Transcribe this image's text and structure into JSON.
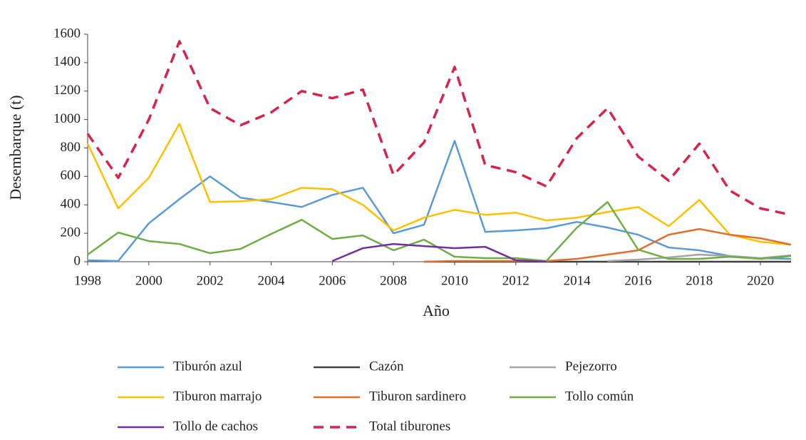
{
  "chart_data": {
    "type": "line",
    "x_label": "Año",
    "y_label": "Desembarque (t)",
    "x": [
      1998,
      1999,
      2000,
      2001,
      2002,
      2003,
      2004,
      2005,
      2006,
      2007,
      2008,
      2009,
      2010,
      2011,
      2012,
      2013,
      2014,
      2015,
      2016,
      2017,
      2018,
      2019,
      2020,
      2021
    ],
    "xlim": [
      1998,
      2021
    ],
    "xticks": [
      1998,
      2000,
      2002,
      2004,
      2006,
      2008,
      2010,
      2012,
      2014,
      2016,
      2018,
      2020
    ],
    "ylim": [
      0,
      1600
    ],
    "yticks": [
      0,
      200,
      400,
      600,
      800,
      1000,
      1200,
      1400,
      1600
    ],
    "grid": false,
    "legend": "bottom",
    "series": [
      {
        "name": "Tiburón azul",
        "color": "#5b9bd5",
        "line_style": "solid",
        "values": [
          10,
          5,
          270,
          440,
          600,
          450,
          420,
          385,
          470,
          520,
          200,
          260,
          850,
          210,
          220,
          235,
          280,
          240,
          190,
          100,
          80,
          40,
          25,
          20
        ]
      },
      {
        "name": "Cazón",
        "color": "#404040",
        "line_style": "solid",
        "values": [
          null,
          null,
          null,
          null,
          null,
          null,
          null,
          null,
          null,
          null,
          null,
          0,
          0,
          0,
          0,
          0,
          0,
          0,
          0,
          0,
          0,
          0,
          0,
          0
        ]
      },
      {
        "name": "Pejezorro",
        "color": "#a5a5a5",
        "line_style": "solid",
        "values": [
          null,
          null,
          null,
          null,
          null,
          null,
          null,
          null,
          null,
          null,
          null,
          null,
          null,
          null,
          null,
          null,
          null,
          5,
          15,
          30,
          50,
          40,
          25,
          45
        ]
      },
      {
        "name": "Tiburon marrajo",
        "color": "#ffc000",
        "line_style": "solid",
        "values": [
          830,
          375,
          590,
          970,
          420,
          425,
          440,
          520,
          510,
          400,
          220,
          310,
          365,
          330,
          345,
          290,
          310,
          350,
          385,
          250,
          435,
          190,
          140,
          120
        ]
      },
      {
        "name": "Tiburon sardinero",
        "color": "#e07030",
        "line_style": "solid",
        "values": [
          null,
          null,
          null,
          null,
          null,
          null,
          null,
          null,
          null,
          null,
          null,
          0,
          5,
          5,
          5,
          5,
          20,
          50,
          80,
          190,
          230,
          190,
          165,
          120
        ]
      },
      {
        "name": "Tollo común",
        "color": "#70ad47",
        "line_style": "solid",
        "values": [
          50,
          205,
          145,
          125,
          60,
          90,
          195,
          295,
          160,
          185,
          80,
          155,
          35,
          25,
          25,
          5,
          240,
          420,
          85,
          20,
          20,
          35,
          20,
          40
        ]
      },
      {
        "name": "Tollo de cachos",
        "color": "#7030a0",
        "line_style": "solid",
        "values": [
          null,
          null,
          null,
          null,
          null,
          null,
          null,
          null,
          5,
          95,
          125,
          110,
          95,
          105,
          10,
          0,
          null,
          null,
          null,
          null,
          null,
          null,
          null,
          null
        ]
      },
      {
        "name": "Total tiburones",
        "color": "#d6254d",
        "line_style": "dashed",
        "values": [
          900,
          590,
          1000,
          1550,
          1080,
          960,
          1050,
          1200,
          1150,
          1210,
          610,
          840,
          1370,
          680,
          630,
          530,
          870,
          1080,
          740,
          570,
          830,
          500,
          375,
          330
        ]
      }
    ]
  }
}
